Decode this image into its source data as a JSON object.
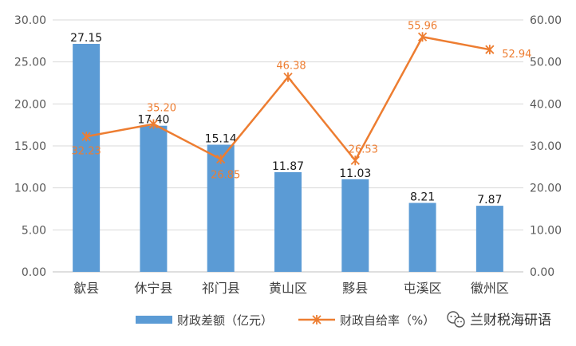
{
  "chart_data": {
    "type": "bar",
    "categories": [
      "歙县",
      "休宁县",
      "祁门县",
      "黄山区",
      "黟县",
      "屯溪区",
      "徽州区"
    ],
    "series": [
      {
        "name": "财政差额（亿元）",
        "type": "bar",
        "axis": "left",
        "values": [
          27.15,
          17.4,
          15.14,
          11.87,
          11.03,
          8.21,
          7.87
        ],
        "labels": [
          "27.15",
          "17.40",
          "15.14",
          "11.87",
          "11.03",
          "8.21",
          "7.87"
        ],
        "color": "#5B9BD5"
      },
      {
        "name": "财政自给率（%）",
        "type": "line",
        "axis": "right",
        "values": [
          32.23,
          35.2,
          26.85,
          46.38,
          26.53,
          55.96,
          52.94
        ],
        "labels": [
          "32.23",
          "35.20",
          "26.85",
          "46.38",
          "26.53",
          "55.96",
          "52.94"
        ],
        "color": "#ED7D31",
        "marker": "asterisk"
      }
    ],
    "y_left": {
      "range": [
        0,
        30
      ],
      "ticks": [
        0,
        5,
        10,
        15,
        20,
        25,
        30
      ],
      "tick_labels": [
        "0.00",
        "5.00",
        "10.00",
        "15.00",
        "20.00",
        "25.00",
        "30.00"
      ]
    },
    "y_right": {
      "range": [
        0,
        60
      ],
      "ticks": [
        0,
        10,
        20,
        30,
        40,
        50,
        60
      ],
      "tick_labels": [
        "0.00",
        "10.00",
        "20.00",
        "30.00",
        "40.00",
        "50.00",
        "60.00"
      ]
    },
    "grid": true,
    "legend_position": "bottom"
  },
  "watermark": {
    "icon": "wechat-icon",
    "text": "兰财税海研语"
  }
}
